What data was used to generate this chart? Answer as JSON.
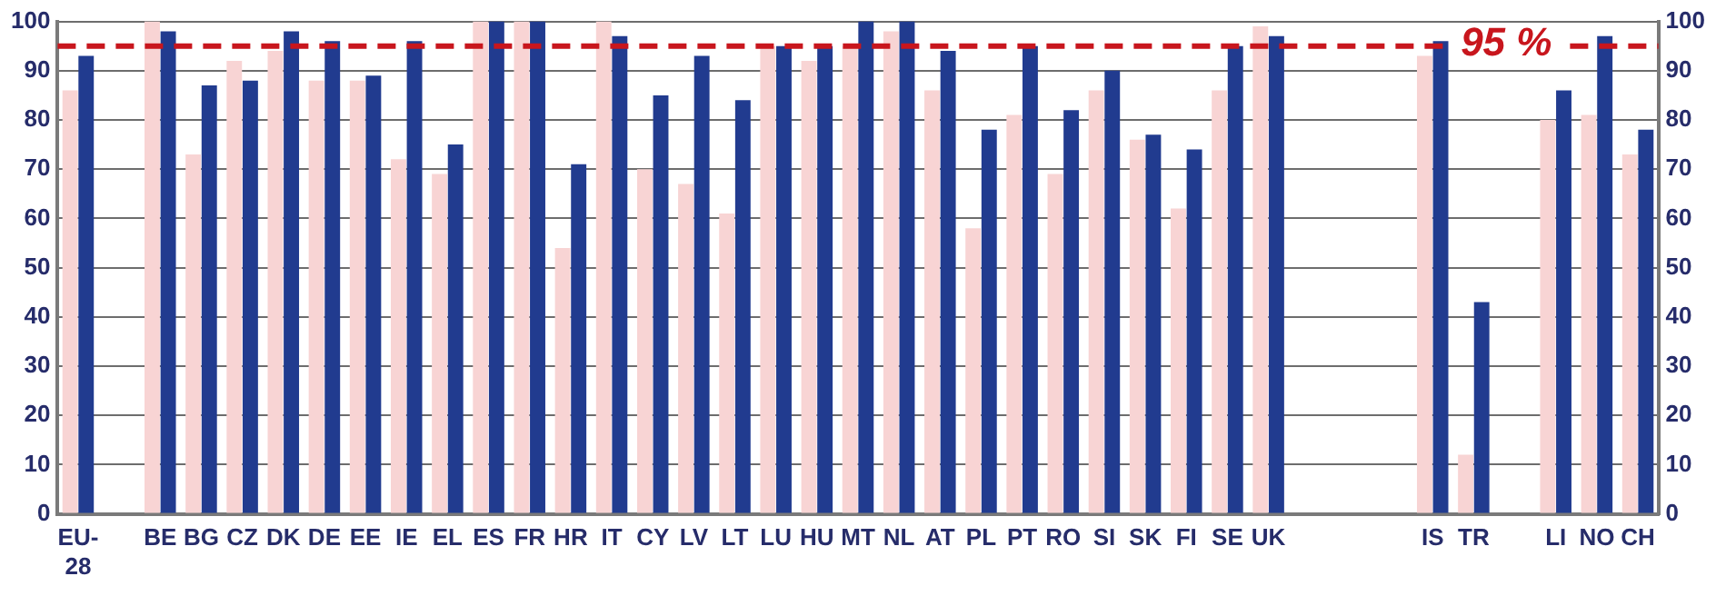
{
  "chart_data": {
    "type": "bar",
    "categories": [
      "EU-28",
      null,
      "BE",
      "BG",
      "CZ",
      "DK",
      "DE",
      "EE",
      "IE",
      "EL",
      "ES",
      "FR",
      "HR",
      "IT",
      "CY",
      "LV",
      "LT",
      "LU",
      "HU",
      "MT",
      "NL",
      "AT",
      "PL",
      "PT",
      "RO",
      "SI",
      "SK",
      "FI",
      "SE",
      "UK",
      null,
      null,
      null,
      "IS",
      "TR",
      null,
      "LI",
      "NO",
      "CH"
    ],
    "series": [
      {
        "color": "#f8d4d4",
        "values": [
          86,
          null,
          100,
          73,
          92,
          94,
          88,
          88,
          72,
          69,
          100,
          100,
          54,
          100,
          70,
          67,
          61,
          95,
          92,
          95,
          98,
          86,
          58,
          81,
          69,
          86,
          76,
          62,
          86,
          99,
          null,
          null,
          null,
          93,
          12,
          null,
          80,
          81,
          73
        ]
      },
      {
        "color": "#213b8f",
        "values": [
          93,
          null,
          98,
          87,
          88,
          98,
          96,
          89,
          96,
          75,
          100,
          100,
          71,
          97,
          85,
          93,
          84,
          95,
          95,
          100,
          100,
          94,
          78,
          95,
          82,
          90,
          77,
          74,
          95,
          97,
          null,
          null,
          null,
          96,
          43,
          null,
          86,
          97,
          78
        ]
      }
    ],
    "ylim": [
      0,
      100
    ],
    "yticks": [
      0,
      10,
      20,
      30,
      40,
      50,
      60,
      70,
      80,
      90,
      100
    ],
    "y2lim": [
      0,
      100
    ],
    "y2ticks": [
      0,
      10,
      20,
      30,
      40,
      50,
      60,
      70,
      80,
      90,
      100
    ],
    "grid": "y",
    "ref_lines": [
      {
        "axis": "y",
        "value": 95,
        "label": "95 %",
        "color": "#c8161d",
        "line_style": "dashed"
      }
    ]
  }
}
